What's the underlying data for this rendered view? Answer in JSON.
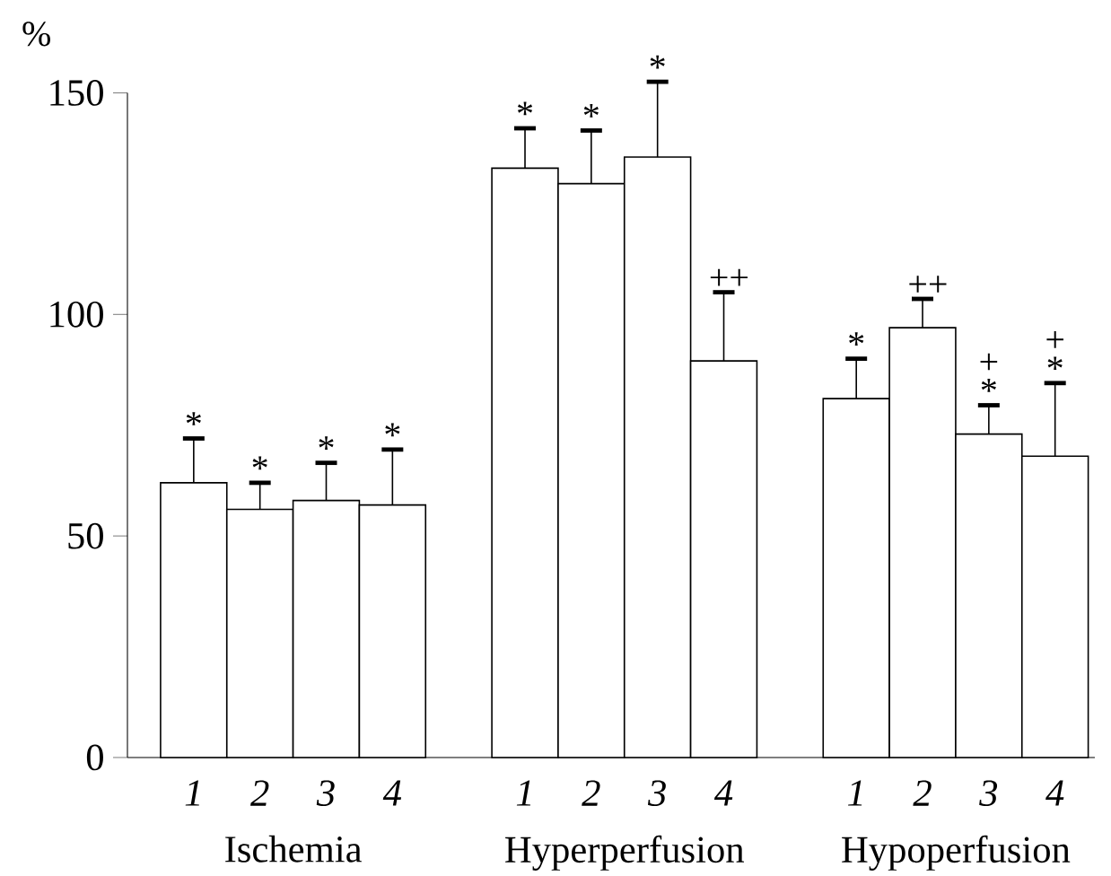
{
  "chart_data": {
    "type": "bar",
    "ylabel": "%",
    "categories": [
      "1",
      "2",
      "3",
      "4",
      "1",
      "2",
      "3",
      "4",
      "1",
      "2",
      "3",
      "4"
    ],
    "values": [
      62,
      56,
      58,
      57,
      133,
      129.5,
      135.5,
      89.5,
      81,
      97,
      73,
      68
    ],
    "errors": [
      [
        62,
        72
      ],
      [
        56,
        62
      ],
      [
        58,
        66.5
      ],
      [
        57,
        69.5
      ],
      [
        133,
        142
      ],
      [
        129.5,
        141.5
      ],
      [
        135.5,
        152.5
      ],
      [
        89.5,
        105
      ],
      [
        81,
        90
      ],
      [
        97,
        103.5
      ],
      [
        73,
        79.5
      ],
      [
        68,
        84.5
      ]
    ],
    "value_labels": [
      "*",
      "*",
      "*",
      "*",
      "*",
      "*",
      "*",
      "++",
      "*",
      "++",
      "+ *",
      "+ *"
    ],
    "color": "#ffffff",
    "annotations": [
      "Ischemia",
      "Hyperperfusion",
      "Hypoperfusion"
    ],
    "ylim": [
      0,
      150
    ],
    "yticks": [
      0,
      50,
      100,
      150
    ]
  }
}
